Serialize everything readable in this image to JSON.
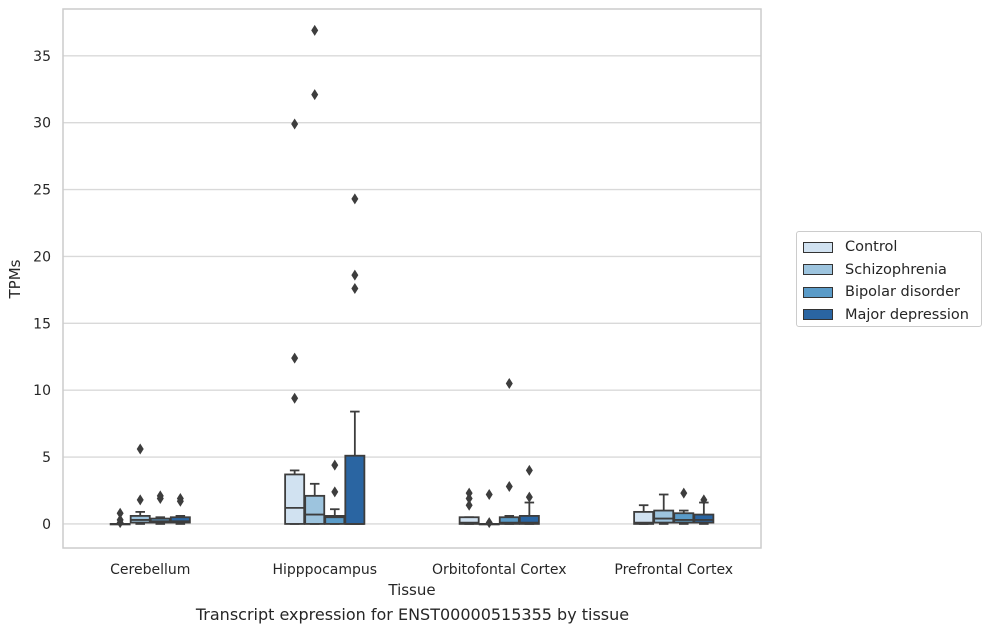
{
  "chart_data": {
    "type": "box",
    "ylabel": "TPMs",
    "xlabel": "Tissue",
    "caption": "Transcript expression for ENST00000515355 by tissue",
    "ylim": [
      -1.8,
      38.5
    ],
    "yticks": [
      0,
      5,
      10,
      15,
      20,
      25,
      30,
      35
    ],
    "grid": true,
    "legend_position": "right",
    "categories": [
      "Cerebellum",
      "Hipppocampus",
      "Orbitofontal Cortex",
      "Prefrontal Cortex"
    ],
    "series": [
      {
        "name": "Control",
        "color": "#d1e2f1",
        "boxes": [
          {
            "min": 0,
            "q1": 0,
            "median": 0,
            "q3": 0,
            "max": 0,
            "outliers": [
              0.8,
              0.3,
              0.1
            ]
          },
          {
            "min": 0,
            "q1": 0,
            "median": 1.2,
            "q3": 3.7,
            "max": 4.0,
            "outliers": [
              29.9,
              12.4,
              9.4
            ]
          },
          {
            "min": 0,
            "q1": 0,
            "median": 0.1,
            "q3": 0.5,
            "max": 0.5,
            "outliers": [
              2.3,
              1.9,
              1.4
            ]
          },
          {
            "min": 0,
            "q1": 0,
            "median": 0.1,
            "q3": 0.9,
            "max": 1.4,
            "outliers": []
          }
        ]
      },
      {
        "name": "Schizophrenia",
        "color": "#9dc4de",
        "boxes": [
          {
            "min": 0,
            "q1": 0.1,
            "median": 0.3,
            "q3": 0.6,
            "max": 0.9,
            "outliers": [
              5.6,
              1.8
            ]
          },
          {
            "min": 0,
            "q1": 0,
            "median": 0.7,
            "q3": 2.1,
            "max": 3.0,
            "outliers": [
              36.9,
              32.1
            ]
          },
          {
            "min": 0,
            "q1": 0,
            "median": 0,
            "q3": 0,
            "max": 0,
            "outliers": [
              2.2,
              0.1
            ]
          },
          {
            "min": 0,
            "q1": 0.1,
            "median": 0.4,
            "q3": 1.0,
            "max": 2.2,
            "outliers": []
          }
        ]
      },
      {
        "name": "Bipolar disorder",
        "color": "#5a9bc8",
        "boxes": [
          {
            "min": 0,
            "q1": 0.1,
            "median": 0.2,
            "q3": 0.4,
            "max": 0.5,
            "outliers": [
              2.1,
              1.9
            ]
          },
          {
            "min": 0,
            "q1": 0,
            "median": 0.5,
            "q3": 0.6,
            "max": 1.1,
            "outliers": [
              4.4,
              2.4
            ]
          },
          {
            "min": 0,
            "q1": 0,
            "median": 0.1,
            "q3": 0.5,
            "max": 0.6,
            "outliers": [
              10.5,
              2.8
            ]
          },
          {
            "min": 0,
            "q1": 0.1,
            "median": 0.3,
            "q3": 0.8,
            "max": 1.0,
            "outliers": [
              2.3
            ]
          }
        ]
      },
      {
        "name": "Major depression",
        "color": "#2a65a2",
        "boxes": [
          {
            "min": 0,
            "q1": 0.1,
            "median": 0.2,
            "q3": 0.5,
            "max": 0.6,
            "outliers": [
              1.9,
              1.7
            ]
          },
          {
            "min": 0,
            "q1": 0,
            "median": 0,
            "q3": 5.1,
            "max": 8.4,
            "outliers": [
              24.3,
              18.6,
              17.6
            ]
          },
          {
            "min": 0,
            "q1": 0,
            "median": 0.1,
            "q3": 0.6,
            "max": 1.6,
            "outliers": [
              4.0,
              2.0
            ]
          },
          {
            "min": 0,
            "q1": 0.1,
            "median": 0.3,
            "q3": 0.7,
            "max": 1.6,
            "outliers": [
              1.8
            ]
          }
        ]
      }
    ]
  }
}
